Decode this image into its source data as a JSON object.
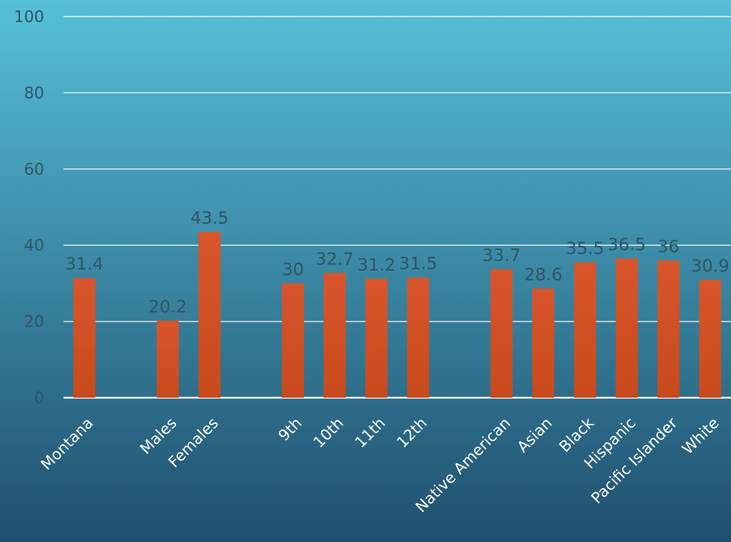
{
  "colors": {
    "bar": "#d9552c",
    "bar_dark": "#c84a1c",
    "background_top": "#56c0d8",
    "background_bottom": "#1f4f6e",
    "gridline": "#ffffff",
    "tick_text": "#2f5566",
    "category_text": "#ffffff"
  },
  "chart_data": {
    "type": "bar",
    "title": "",
    "xlabel": "",
    "ylabel": "",
    "ylim": [
      0,
      100
    ],
    "yticks": [
      0,
      20,
      40,
      60,
      80,
      100
    ],
    "grid": true,
    "legend": "none",
    "categories": [
      "Montana",
      "",
      "Males",
      "Females",
      "",
      "9th",
      "10th",
      "11th",
      "12th",
      "",
      "Native American",
      "Asian",
      "Black",
      "Hispanic",
      "Pacific Islander",
      "White"
    ],
    "values": [
      31.4,
      null,
      20.2,
      43.5,
      null,
      30,
      32.7,
      31.2,
      31.5,
      null,
      33.7,
      28.6,
      35.5,
      36.5,
      36,
      30.9
    ],
    "data_labels": [
      "31.4",
      "",
      "20.2",
      "43.5",
      "",
      "30",
      "32.7",
      "31.2",
      "31.5",
      "",
      "33.7",
      "28.6",
      "35.5",
      "36.5",
      "36",
      "30.9"
    ]
  }
}
